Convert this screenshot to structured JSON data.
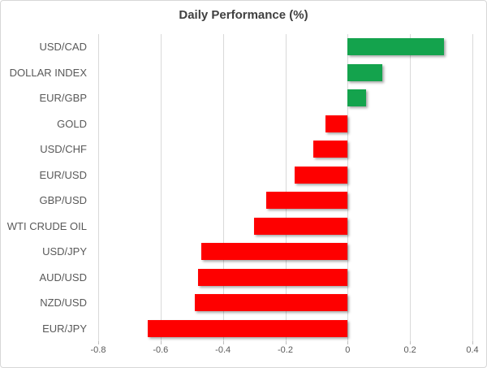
{
  "chart_data": {
    "type": "bar",
    "orientation": "horizontal",
    "title": "Daily Performance (%)",
    "xlabel": "",
    "ylabel": "",
    "categories": [
      "USD/CAD",
      "DOLLAR INDEX",
      "EUR/GBP",
      "GOLD",
      "USD/CHF",
      "EUR/USD",
      "GBP/USD",
      "WTI CRUDE OIL",
      "USD/JPY",
      "AUD/USD",
      "NZD/USD",
      "EUR/JPY"
    ],
    "values": [
      0.31,
      0.11,
      0.06,
      -0.07,
      -0.11,
      -0.17,
      -0.26,
      -0.3,
      -0.47,
      -0.48,
      -0.49,
      -0.64
    ],
    "xlim": [
      -0.8,
      0.4
    ],
    "xticks": [
      -0.8,
      -0.6,
      -0.4,
      -0.2,
      0,
      0.2,
      0.4
    ],
    "xtick_labels": [
      "-0.8",
      "-0.6",
      "-0.4",
      "-0.2",
      "0",
      "0.2",
      "0.4"
    ],
    "grid": true,
    "legend": false,
    "colors": {
      "positive": "#14a34d",
      "negative": "#fe0000",
      "gridline": "#d9d9d9",
      "axis_text": "#595959",
      "title_text": "#404040"
    }
  }
}
